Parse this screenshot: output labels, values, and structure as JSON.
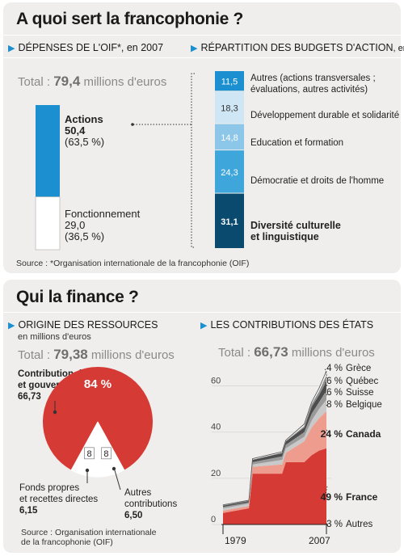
{
  "section1": {
    "title": "A quoi sert la francophonie ?",
    "left_header": "DÉPENSES DE L'OIF*, en 2007",
    "right_header_main": "RÉPARTITION DES BUDGETS D'ACTION",
    "right_header_unit": ", en %",
    "total_prefix": "Total : ",
    "total_value": "79,4",
    "total_suffix": " millions d'euros",
    "source": "Source : *Organisation internationale de la francophonie (OIF)"
  },
  "section2": {
    "title": "Qui la finance ?",
    "left_header": "ORIGINE DES RESSOURCES",
    "left_unit": "en millions d'euros",
    "left_total_prefix": "Total : ",
    "left_total_value": "79,38",
    "left_total_suffix": " millions d'euros",
    "right_header": "LES CONTRIBUTIONS DES ÉTATS",
    "right_total_prefix": "Total : ",
    "right_total_value": "66,73",
    "right_total_suffix": " millions d'euros",
    "source_line1": "Source : Organisation internationale",
    "source_line2": "de la francophonie (OIF)"
  },
  "colors": {
    "blue_dark": "#0a4a6e",
    "blue": "#1b8fd0",
    "blue_mid": "#3fa6dc",
    "blue_light": "#8cc6e8",
    "blue_pale": "#cfe6f4",
    "red": "#d63a35",
    "salmon": "#ee9c8d",
    "grey_dark": "#4d4d4d",
    "grey": "#9a9a9a",
    "grey_light": "#c9c9c9"
  },
  "chart_data": [
    {
      "type": "bar",
      "title": "DÉPENSES DE L'OIF*, en 2007",
      "stacked": true,
      "series": [
        {
          "name": "Actions",
          "value": 50.4,
          "value_label": "50,4",
          "percent_label": "(63,5 %)"
        },
        {
          "name": "Fonctionnement",
          "value": 29.0,
          "value_label": "29,0",
          "percent_label": "(36,5 %)"
        }
      ]
    },
    {
      "type": "bar",
      "title": "RÉPARTITION DES BUDGETS D'ACTION, en %",
      "stacked": true,
      "segments": [
        {
          "label_line1": "Autres (actions transversales ;",
          "label_line2": "évaluations, autres activités)",
          "value": 11.5,
          "value_label": "11,5"
        },
        {
          "label_line1": "Développement durable et solidarité",
          "label_line2": "",
          "value": 18.3,
          "value_label": "18,3"
        },
        {
          "label_line1": "Education et formation",
          "label_line2": "",
          "value": 14.8,
          "value_label": "14,8"
        },
        {
          "label_line1": "Démocratie et droits de l'homme",
          "label_line2": "",
          "value": 24.3,
          "value_label": "24,3"
        },
        {
          "label_line1": "Diversité culturelle",
          "label_line2": "et linguistique",
          "value": 31.1,
          "value_label": "31,1",
          "bold": true
        }
      ]
    },
    {
      "type": "pie",
      "title": "ORIGINE DES RESSOURCES",
      "slices": [
        {
          "label_line1": "Contribution des Etats",
          "label_line2": "et gouvernement membres",
          "amount": "66,73",
          "percent": 84,
          "percent_label": "84 %"
        },
        {
          "label_line1": "Fonds propres",
          "label_line2": "et recettes directes",
          "amount": "6,15",
          "percent": 8,
          "percent_label": "8"
        },
        {
          "label_line1": "Autres",
          "label_line2": "contributions",
          "amount": "6,50",
          "percent": 8,
          "percent_label": "8"
        }
      ]
    },
    {
      "type": "area",
      "title": "LES CONTRIBUTIONS DES ÉTATS",
      "stacked": true,
      "ylim": [
        0,
        70
      ],
      "yticks": [
        0,
        20,
        40,
        60
      ],
      "x_labels": [
        "1979",
        "2007"
      ],
      "x": [
        1979,
        1986,
        1987,
        1995,
        1996,
        2001,
        2003,
        2005,
        2007
      ],
      "series": [
        {
          "name": "France",
          "label": "49 %",
          "bold": true,
          "values": [
            5,
            7,
            22,
            22,
            27,
            27,
            30,
            32,
            33
          ]
        },
        {
          "name": "Canada",
          "label": "24 %",
          "bold": true,
          "values": [
            1,
            1,
            3,
            4,
            4,
            9,
            12,
            14,
            16
          ]
        },
        {
          "name": "Belgique",
          "label": "8 %",
          "values": [
            1,
            1,
            1,
            2,
            2,
            2,
            3,
            4,
            5
          ]
        },
        {
          "name": "Suisse",
          "label": "6 %",
          "values": [
            0.6,
            0.6,
            1,
            1.5,
            1.5,
            2,
            3,
            3,
            4
          ]
        },
        {
          "name": "Québec",
          "label": "6 %",
          "values": [
            0.6,
            0.6,
            1,
            1.5,
            1.5,
            2,
            3,
            3,
            4
          ]
        },
        {
          "name": "Grèce",
          "label": "4 %",
          "values": [
            0,
            0,
            0,
            0,
            0,
            0.5,
            1,
            1.5,
            2.5
          ]
        },
        {
          "name": "Autres",
          "label": "3 %",
          "values": [
            0.3,
            0.3,
            0.5,
            0.5,
            0.5,
            1,
            1,
            1.5,
            2
          ]
        }
      ]
    }
  ]
}
